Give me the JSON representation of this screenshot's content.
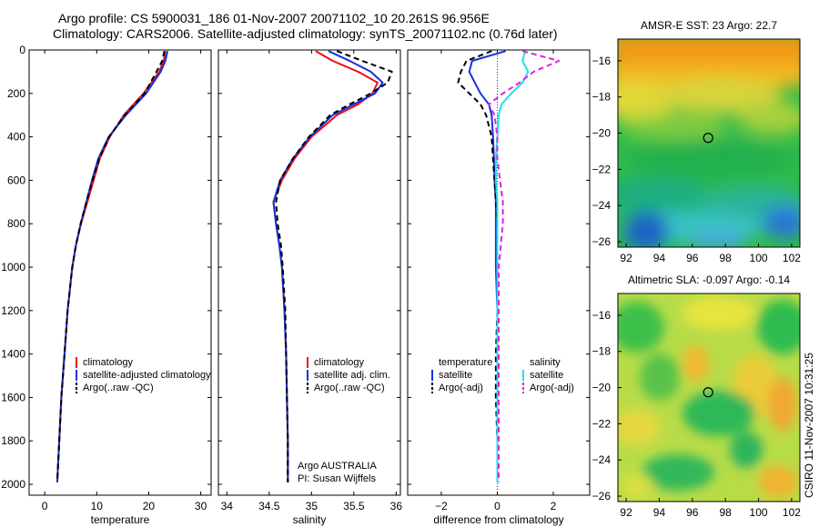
{
  "header": {
    "line1": "Argo profile: CS 5900031_186 01-Nov-2007 20071102_10 20.261S 96.956E",
    "line2": "Climatology: CARS2006. Satellite-adjusted climatology: synTS_20071102.nc (0.76d later)"
  },
  "stamp": "CSIRO 11-Nov-2007 10:31:25",
  "colors": {
    "climatology": "#ee1111",
    "satellite": "#1133dd",
    "argo": "#000000",
    "cyan": "#22e0e8",
    "magenta": "#e020e0"
  },
  "chart_data": [
    {
      "type": "line",
      "xlabel": "temperature",
      "ylabel": "",
      "xlim": [
        -3,
        32
      ],
      "ylim": [
        2050,
        0
      ],
      "xticks": [
        0,
        10,
        20,
        30
      ],
      "yticks": [
        0,
        200,
        400,
        600,
        800,
        1000,
        1200,
        1400,
        1600,
        1800,
        2000
      ],
      "depth": [
        5,
        50,
        100,
        200,
        300,
        400,
        500,
        600,
        700,
        800,
        900,
        1000,
        1200,
        1400,
        1600,
        1800,
        1990
      ],
      "series": [
        {
          "name": "climatology",
          "color": "climatology",
          "dash": "",
          "values": [
            23.2,
            22.9,
            22.0,
            19.0,
            15.2,
            12.5,
            10.6,
            9.4,
            8.2,
            7.0,
            6.0,
            5.3,
            4.4,
            3.8,
            3.2,
            2.8,
            2.4
          ]
        },
        {
          "name": "satellite-adjusted climatology",
          "color": "satellite",
          "dash": "",
          "values": [
            23.6,
            23.2,
            22.3,
            19.5,
            15.6,
            12.3,
            10.3,
            9.1,
            8.0,
            6.9,
            6.0,
            5.3,
            4.4,
            3.8,
            3.2,
            2.8,
            2.4
          ]
        },
        {
          "name": "Argo(..raw -QC)",
          "color": "argo",
          "dash": "6,4",
          "values": [
            23.0,
            22.6,
            21.5,
            19.2,
            15.4,
            12.4,
            10.5,
            9.2,
            8.0,
            6.9,
            6.0,
            5.3,
            4.4,
            3.8,
            3.2,
            2.8,
            2.4
          ]
        }
      ],
      "legend": [
        "climatology",
        "satellite-adjusted climatology",
        "Argo(..raw -QC)"
      ]
    },
    {
      "type": "line",
      "xlabel": "salinity",
      "ylabel": "",
      "xlim": [
        33.9,
        36.05
      ],
      "ylim": [
        2050,
        0
      ],
      "xticks": [
        34,
        34.5,
        35,
        35.5,
        36
      ],
      "depth": [
        5,
        50,
        100,
        150,
        200,
        250,
        300,
        400,
        500,
        600,
        700,
        800,
        900,
        1000,
        1200,
        1400,
        1600,
        1800,
        1990
      ],
      "series": [
        {
          "name": "climatology",
          "color": "climatology",
          "dash": "",
          "values": [
            35.05,
            35.25,
            35.55,
            35.78,
            35.72,
            35.55,
            35.3,
            35.0,
            34.8,
            34.65,
            34.55,
            34.58,
            34.62,
            34.65,
            34.68,
            34.7,
            34.71,
            34.72,
            34.72
          ]
        },
        {
          "name": "satellite adj. clim.",
          "color": "satellite",
          "dash": "",
          "values": [
            35.2,
            35.45,
            35.7,
            35.84,
            35.75,
            35.5,
            35.25,
            34.98,
            34.78,
            34.63,
            34.55,
            34.58,
            34.62,
            34.65,
            34.68,
            34.7,
            34.71,
            34.72,
            34.72
          ]
        },
        {
          "name": "Argo(..raw -QC)",
          "color": "argo",
          "dash": "6,4",
          "values": [
            35.3,
            35.6,
            35.95,
            35.9,
            35.7,
            35.45,
            35.22,
            34.97,
            34.78,
            34.63,
            34.58,
            34.6,
            34.64,
            34.66,
            34.69,
            34.7,
            34.71,
            34.72,
            34.72
          ]
        }
      ],
      "legend": [
        "climatology",
        "satellite adj. clim.",
        "Argo(..raw -QC)"
      ],
      "annotations": [
        "Argo AUSTRALIA",
        "PI: Susan Wijffels"
      ]
    },
    {
      "type": "line",
      "xlabel": "difference from climatology",
      "ylabel": "",
      "xlim": [
        -3.2,
        3.3
      ],
      "ylim": [
        2050,
        0
      ],
      "xticks": [
        -2,
        0,
        2
      ],
      "depth": [
        5,
        50,
        100,
        150,
        200,
        250,
        300,
        400,
        500,
        600,
        700,
        800,
        1000,
        1200,
        1400,
        1600,
        1800,
        1990
      ],
      "series": [
        {
          "name": "temperature satellite",
          "color": "satellite",
          "dash": "",
          "values": [
            0.3,
            -0.9,
            -1.0,
            -0.8,
            -0.6,
            -0.3,
            -0.2,
            -0.15,
            -0.12,
            -0.1,
            -0.05,
            -0.05,
            -0.05,
            0,
            0,
            0,
            0,
            0
          ]
        },
        {
          "name": "temperature Argo(-adj)",
          "color": "argo",
          "dash": "6,4",
          "values": [
            -0.2,
            -1.1,
            -1.3,
            -1.4,
            -1.0,
            -0.6,
            -0.4,
            -0.2,
            -0.15,
            -0.1,
            -0.05,
            0,
            0,
            0,
            -0.05,
            -0.05,
            0,
            0
          ]
        },
        {
          "name": "salinity satellite",
          "color": "cyan",
          "dash": "",
          "values": [
            1.0,
            0.9,
            1.1,
            0.9,
            0.5,
            0.15,
            0.05,
            0,
            -0.05,
            -0.05,
            0,
            0,
            0,
            0,
            0,
            0,
            0,
            0
          ]
        },
        {
          "name": "salinity Argo(-adj)",
          "color": "magenta",
          "dash": "6,4",
          "values": [
            0.9,
            2.2,
            1.3,
            0.8,
            0.2,
            -0.3,
            -0.1,
            0,
            0,
            0.1,
            0.2,
            0.2,
            0.05,
            0.05,
            0.05,
            0.05,
            0.05,
            0.05
          ]
        }
      ],
      "legend_temperature": {
        "title": "temperature",
        "items": [
          "satellite",
          "Argo(-adj)"
        ]
      },
      "legend_salinity": {
        "title": "salinity",
        "items": [
          "satellite",
          "Argo(-adj)"
        ]
      }
    },
    {
      "type": "heatmap",
      "title": "AMSR-E SST: 23 Argo: 22.7",
      "xlim": [
        91.5,
        102.5
      ],
      "ylim": [
        -26.3,
        -14.8
      ],
      "xticks": [
        92,
        94,
        96,
        98,
        100,
        102
      ],
      "yticks": [
        -16,
        -18,
        -20,
        -22,
        -24,
        -26
      ],
      "marker": {
        "x": 96.956,
        "y": -20.261
      }
    },
    {
      "type": "heatmap",
      "title": "Altimetric SLA: -0.097 Argo: -0.14",
      "xlim": [
        91.5,
        102.5
      ],
      "ylim": [
        -26.3,
        -14.8
      ],
      "xticks": [
        92,
        94,
        96,
        98,
        100,
        102
      ],
      "yticks": [
        -16,
        -18,
        -20,
        -22,
        -24,
        -26
      ],
      "marker": {
        "x": 96.956,
        "y": -20.261
      }
    }
  ]
}
